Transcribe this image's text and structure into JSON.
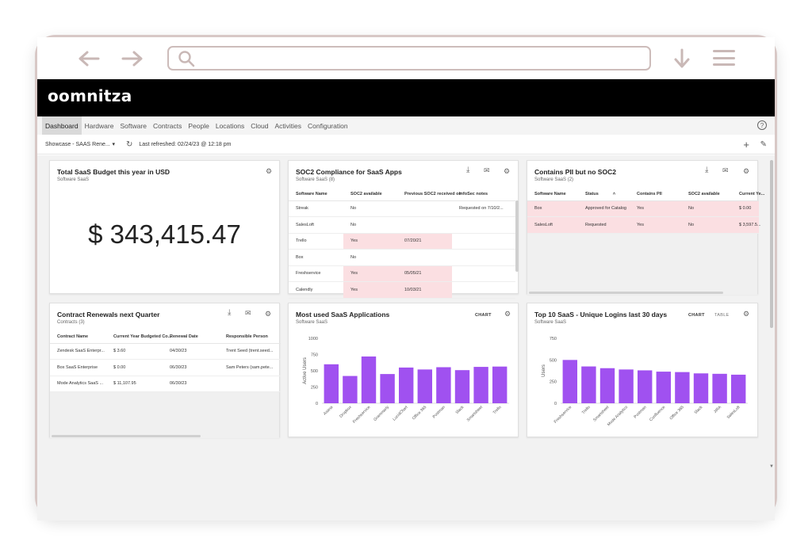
{
  "app": {
    "logo": "oomnitza"
  },
  "nav": {
    "tabs": [
      "Dashboard",
      "Hardware",
      "Software",
      "Contracts",
      "People",
      "Locations",
      "Cloud",
      "Activities",
      "Configuration"
    ],
    "help": "?"
  },
  "toolbar": {
    "dashboard_select": "Showcase - SAAS Rene...",
    "last_refreshed": "Last refreshed: 02/24/23 @ 12:18 pm"
  },
  "budget": {
    "title": "Total SaaS Budget this year in USD",
    "subtitle": "Software SaaS",
    "value": "$ 343,415.47"
  },
  "soc2": {
    "title": "SOC2 Compliance for SaaS Apps",
    "subtitle": "Software SaaS (8)",
    "columns": [
      "Software Name",
      "SOC2 available",
      "Previous SOC2 received on",
      "InfoSec notes"
    ],
    "rows": [
      {
        "name": "Streak",
        "available": "No",
        "received": "",
        "notes": "Requested on 7/10/2..."
      },
      {
        "name": "SalesLoft",
        "available": "No",
        "received": "",
        "notes": ""
      },
      {
        "name": "Trello",
        "available": "Yes",
        "received": "07/20/21",
        "notes": ""
      },
      {
        "name": "Box",
        "available": "No",
        "received": "",
        "notes": ""
      },
      {
        "name": "Freshservice",
        "available": "Yes",
        "received": "05/05/21",
        "notes": ""
      },
      {
        "name": "Calendly",
        "available": "Yes",
        "received": "10/03/21",
        "notes": ""
      }
    ]
  },
  "pii": {
    "title": "Contains PII but no SOC2",
    "subtitle": "Software SaaS (2)",
    "columns": [
      "Software Name",
      "Status",
      "Contains PII",
      "SOC2 available",
      "Current Ye..."
    ],
    "rows": [
      {
        "name": "Box",
        "status": "Approved for Catalog",
        "pii": "Yes",
        "soc2": "No",
        "current": "$ 0.00"
      },
      {
        "name": "SalesLoft",
        "status": "Requested",
        "pii": "Yes",
        "soc2": "No",
        "current": "$ 3,597.5..."
      }
    ]
  },
  "renewals": {
    "title": "Contract Renewals next Quarter",
    "subtitle": "Contracts (3)",
    "columns": [
      "Contract Name",
      "Current Year Budgeted Co...",
      "Renewal Date",
      "Responsible Person"
    ],
    "rows": [
      {
        "name": "Zendesk SaaS Enterpr...",
        "budget": "$ 3.60",
        "date": "04/30/23",
        "person": "Trent Seed (trent.seed..."
      },
      {
        "name": "Box SaaS Enterprise",
        "budget": "$ 0.00",
        "date": "06/30/23",
        "person": "Sam Peters (sam.pete..."
      },
      {
        "name": "Mode Analytics SaaS ...",
        "budget": "$ 11,107.95",
        "date": "06/30/23",
        "person": ""
      }
    ]
  },
  "most_used": {
    "title": "Most used SaaS Applications",
    "subtitle": "Software SaaS",
    "toggle_chart": "CHART"
  },
  "top10": {
    "title": "Top 10 SaaS - Unique Logins last 30 days",
    "subtitle": "Software SaaS",
    "toggle_chart": "CHART",
    "toggle_table": "TABLE"
  },
  "colors": {
    "bar": "#a051f0",
    "pink": "#fbdfe2",
    "header": "#000000"
  },
  "icons": [
    "back-arrow-icon",
    "forward-arrow-icon",
    "search-icon",
    "download-icon",
    "menu-icon",
    "gear-icon",
    "mail-icon",
    "refresh-icon",
    "plus-icon",
    "pencil-icon"
  ],
  "chart_data": [
    {
      "type": "bar",
      "categories": [
        "Asana",
        "Dropbox",
        "Freshservice",
        "Grammarly",
        "LucidChart",
        "Office 365",
        "Postman",
        "Slack",
        "Smartsheet",
        "Trello"
      ],
      "values": [
        600,
        420,
        720,
        450,
        550,
        520,
        555,
        510,
        560,
        565
      ],
      "ylabel": "Active Users",
      "ylim": [
        0,
        1000
      ],
      "yticks": [
        0,
        250,
        500,
        750,
        1000
      ]
    },
    {
      "type": "bar",
      "categories": [
        "Freshservice",
        "Trello",
        "Smartsheet",
        "Mode Analytics",
        "Postman",
        "Confluence",
        "Office 365",
        "Slack",
        "JIRA",
        "SalesLoft"
      ],
      "values": [
        500,
        425,
        405,
        390,
        380,
        365,
        360,
        345,
        340,
        330
      ],
      "ylabel": "Users",
      "ylim": [
        0,
        750
      ],
      "yticks": [
        0,
        250,
        500,
        750
      ]
    }
  ]
}
